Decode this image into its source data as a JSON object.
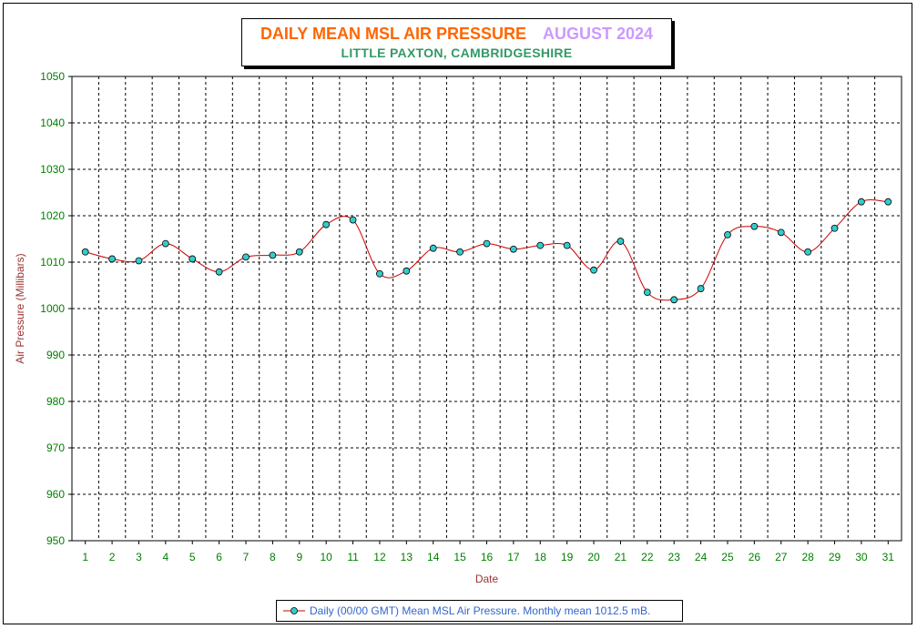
{
  "colors": {
    "title": "#ff6600",
    "month": "#cc99ff",
    "subtitle": "#339966",
    "y_ticks": "#008000",
    "x_ticks": "#008000",
    "axis_label": "#993333",
    "line": "#cc0000",
    "marker_fill": "#33cccc",
    "legend_text": "#3366cc"
  },
  "header": {
    "title": "DAILY MEAN MSL AIR PRESSURE",
    "month": "AUGUST 2024",
    "subtitle": "LITTLE PAXTON, CAMBRIDGESHIRE"
  },
  "chart_data": {
    "type": "line",
    "title": "DAILY MEAN MSL AIR PRESSURE",
    "subtitle": "LITTLE PAXTON, CAMBRIDGESHIRE",
    "xlabel": "Date",
    "ylabel": "Air Pressure (Millibars)",
    "ylim": [
      950,
      1050
    ],
    "yticks": [
      950,
      960,
      970,
      980,
      990,
      1000,
      1010,
      1020,
      1030,
      1040,
      1050
    ],
    "x": [
      1,
      2,
      3,
      4,
      5,
      6,
      7,
      8,
      9,
      10,
      11,
      12,
      13,
      14,
      15,
      16,
      17,
      18,
      19,
      20,
      21,
      22,
      23,
      24,
      25,
      26,
      27,
      28,
      29,
      30,
      31
    ],
    "grid": true,
    "legend_position": "bottom",
    "series": [
      {
        "name": "Daily (00/00 GMT) Mean MSL Air Pressure. Monthly mean 1012.5 mB.",
        "values": [
          1012.2,
          1010.7,
          1010.3,
          1014.0,
          1010.7,
          1007.9,
          1011.1,
          1011.5,
          1012.2,
          1018.1,
          1019.1,
          1007.5,
          1008.1,
          1013.0,
          1012.2,
          1014.0,
          1012.8,
          1013.6,
          1013.6,
          1008.3,
          1014.5,
          1003.5,
          1001.9,
          1004.3,
          1015.9,
          1017.7,
          1016.4,
          1012.2,
          1017.3,
          1023.0,
          1023.0
        ]
      }
    ]
  }
}
